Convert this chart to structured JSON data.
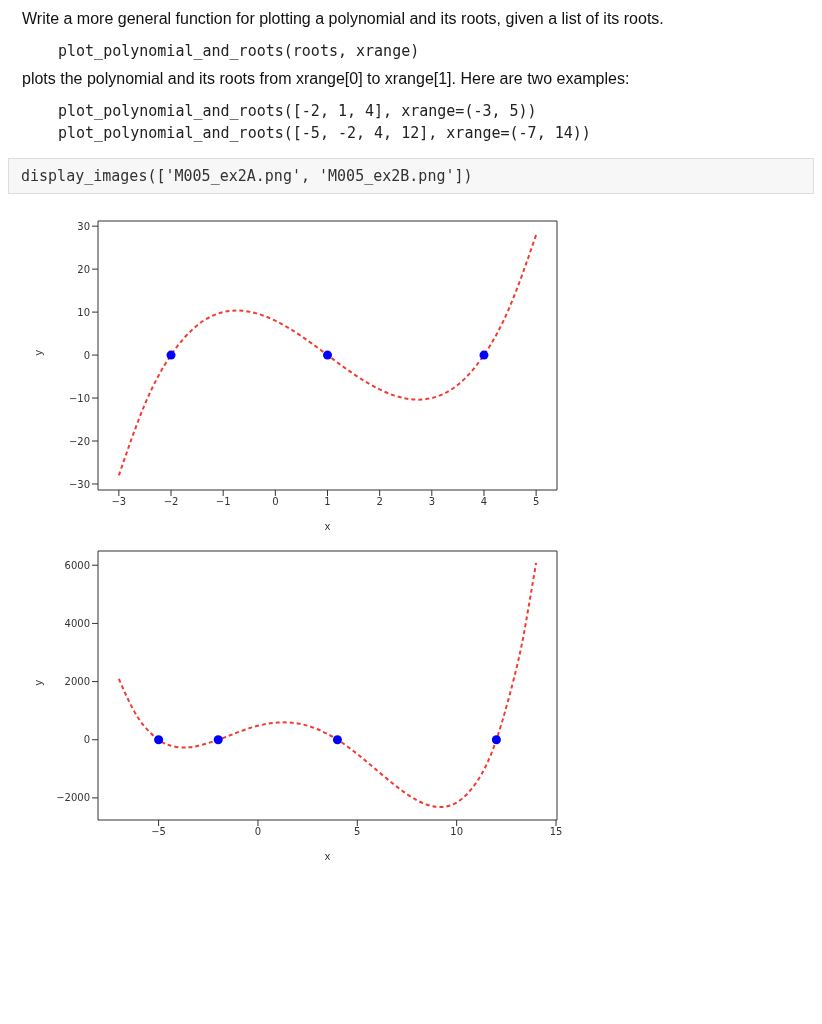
{
  "chart_data": [
    {
      "type": "line",
      "xlabel": "x",
      "ylabel": "y",
      "annotations": [
        "Write a more general function for plotting a polynomial and its roots, given a list of its roots.",
        "plot_polynomial_and_roots(roots, xrange)",
        "plots the polynomial and its roots from xrange[0] to xrange[1]. Here are two examples:",
        "plot_polynomial_and_roots([-2, 1, 4], xrange=(-3, 5))",
        "plot_polynomial_and_roots([-5, -2, 4, 12], xrange=(-7, 14))",
        "display_images(['M005_ex2A.png', 'M005_ex2B.png'])"
      ],
      "xlim": [
        -3.4,
        5.4
      ],
      "xticks": [
        -3,
        -2,
        -1,
        0,
        1,
        2,
        3,
        4,
        5
      ],
      "ylim": [
        -31.4,
        31.2
      ],
      "yticks": [
        -30,
        -20,
        -10,
        0,
        10,
        20,
        30
      ],
      "series": [
        {
          "color": "#f03c32",
          "line_style": "dashed",
          "marker": "none",
          "x": [
            -3,
            -2.5,
            -2,
            -1.5,
            -1,
            -0.5,
            0,
            0.5,
            1,
            1.5,
            2,
            2.5,
            3,
            3.5,
            4,
            4.5,
            5
          ],
          "values": [
            -28,
            -11.4,
            0,
            6.9,
            10,
            10.1,
            8,
            4.4,
            0,
            -4.4,
            -8,
            -10.1,
            -10,
            -6.9,
            0,
            11.4,
            28
          ]
        },
        {
          "type": "scatter",
          "color": "#0000ff",
          "marker": "circle",
          "x": [
            -2,
            1,
            4
          ],
          "values": [
            0,
            0,
            0
          ]
        }
      ]
    },
    {
      "type": "line",
      "xlabel": "x",
      "ylabel": "y",
      "xlim": [
        -8.05,
        15.05
      ],
      "xticks": [
        -5,
        0,
        5,
        10,
        15
      ],
      "ylim": [
        -2760,
        6490
      ],
      "yticks": [
        -2000,
        0,
        2000,
        4000,
        6000
      ],
      "series": [
        {
          "color": "#f03c32",
          "line_style": "dashed",
          "marker": "none",
          "x": [
            -7,
            -6,
            -5,
            -4.5,
            -4,
            -3.5,
            -3,
            -2,
            -1,
            0,
            1,
            2,
            3,
            4,
            5,
            6,
            7,
            8,
            9,
            10,
            11,
            12,
            13,
            13.5,
            14
          ],
          "values": [
            2090,
            720,
            0,
            -180,
            -260,
            -260,
            -210,
            0,
            260,
            480,
            590,
            560,
            360,
            0,
            -490,
            -1060,
            -1620,
            -2080,
            -2310,
            -2160,
            -1460,
            0,
            2430,
            4090,
            6080
          ]
        },
        {
          "type": "scatter",
          "color": "#0000ff",
          "marker": "circle",
          "x": [
            -5,
            -2,
            4,
            12
          ],
          "values": [
            0,
            0,
            0,
            0
          ]
        }
      ]
    }
  ]
}
